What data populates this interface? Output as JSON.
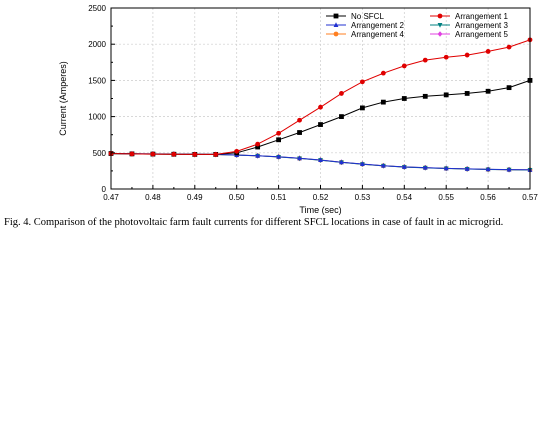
{
  "caption": "Fig. 4. Comparison of the photovoltaic farm fault currents for different SFCL locations in case of fault in ac microgrid.",
  "chart_data": {
    "type": "line",
    "title": "",
    "xlabel": "Time (sec)",
    "ylabel": "Current (Amperes)",
    "xlim": [
      0.47,
      0.57
    ],
    "ylim": [
      0,
      2500
    ],
    "x_ticks": [
      "0.47",
      "0.48",
      "0.49",
      "0.50",
      "0.51",
      "0.52",
      "0.53",
      "0.54",
      "0.55",
      "0.56",
      "0.57"
    ],
    "x_tick_values": [
      0.47,
      0.48,
      0.49,
      0.5,
      0.51,
      0.52,
      0.53,
      0.54,
      0.55,
      0.56,
      0.57
    ],
    "y_ticks": [
      "0",
      "500",
      "1000",
      "1500",
      "2000",
      "2500"
    ],
    "y_tick_values": [
      0,
      500,
      1000,
      1500,
      2000,
      2500
    ],
    "grid": true,
    "legend_position": "top-right",
    "x": [
      0.47,
      0.475,
      0.48,
      0.485,
      0.49,
      0.495,
      0.5,
      0.505,
      0.51,
      0.515,
      0.52,
      0.525,
      0.53,
      0.535,
      0.54,
      0.545,
      0.55,
      0.555,
      0.56,
      0.565,
      0.57
    ],
    "series": [
      {
        "name": "No SFCL",
        "color": "#000000",
        "marker": "square",
        "values": [
          490,
          485,
          482,
          480,
          478,
          478,
          500,
          580,
          680,
          780,
          890,
          1000,
          1120,
          1200,
          1250,
          1280,
          1300,
          1320,
          1350,
          1400,
          1500
        ]
      },
      {
        "name": "Arrangement 1",
        "color": "#e00000",
        "marker": "circle",
        "values": [
          490,
          485,
          482,
          480,
          478,
          478,
          520,
          620,
          770,
          950,
          1130,
          1320,
          1480,
          1600,
          1700,
          1780,
          1820,
          1850,
          1900,
          1960,
          2060
        ]
      },
      {
        "name": "Arrangement 2",
        "color": "#2030d0",
        "marker": "triangle-up",
        "values": [
          490,
          488,
          485,
          483,
          480,
          478,
          470,
          460,
          445,
          425,
          400,
          370,
          345,
          322,
          305,
          295,
          285,
          278,
          272,
          268,
          265
        ]
      },
      {
        "name": "Arrangement 3",
        "color": "#008080",
        "marker": "triangle-down",
        "values": [
          488,
          486,
          483,
          481,
          479,
          476,
          468,
          458,
          442,
          422,
          398,
          368,
          342,
          320,
          303,
          292,
          283,
          276,
          270,
          266,
          263
        ]
      },
      {
        "name": "Arrangement 4",
        "color": "#ff7f20",
        "marker": "circle",
        "values": [
          489,
          487,
          484,
          482,
          479,
          477,
          469,
          459,
          443,
          423,
          399,
          369,
          343,
          321,
          304,
          293,
          284,
          277,
          271,
          267,
          264
        ]
      },
      {
        "name": "Arrangement 5",
        "color": "#e040e0",
        "marker": "diamond",
        "values": [
          490,
          487,
          484,
          482,
          480,
          477,
          469,
          459,
          444,
          424,
          399,
          369,
          344,
          321,
          304,
          294,
          284,
          277,
          271,
          267,
          264
        ]
      }
    ]
  }
}
